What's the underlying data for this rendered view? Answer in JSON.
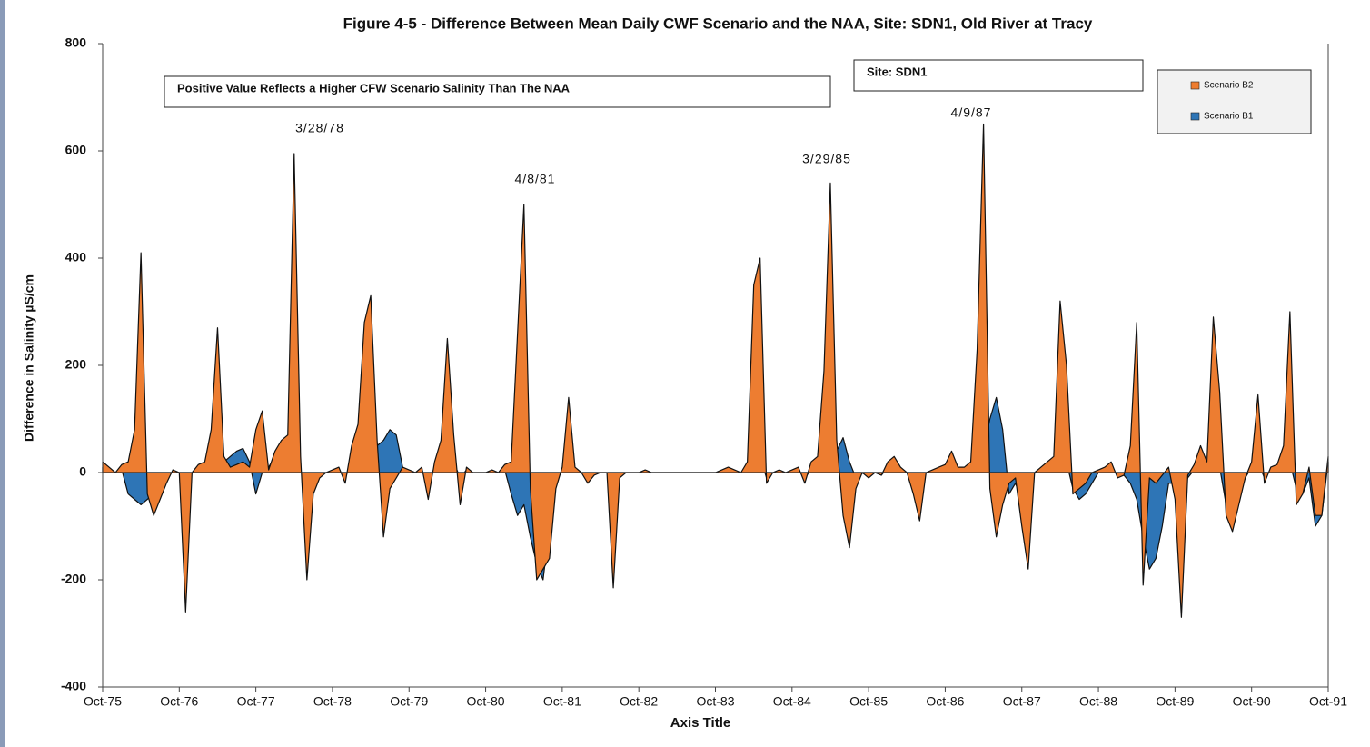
{
  "chart_data": {
    "type": "area",
    "title": "Figure 4-5 - Difference Between Mean Daily CWF Scenario and the NAA, Site: SDN1, Old River at Tracy",
    "x_label": "Axis Title",
    "y_label": "Difference in Salinity µS/cm",
    "annotations": [
      "Positive Value Reflects a Higher CFW Scenario Salinity Than The NAA",
      "Site: SDN1",
      "3/28/78",
      "4/8/81",
      "3/29/85",
      "4/9/87"
    ],
    "categories": [
      "Oct-75",
      null,
      null,
      null,
      null,
      null,
      null,
      null,
      null,
      null,
      null,
      null,
      "Oct-76",
      null,
      null,
      null,
      null,
      null,
      null,
      null,
      null,
      null,
      null,
      null,
      "Oct-77",
      null,
      null,
      null,
      null,
      null,
      null,
      null,
      null,
      null,
      null,
      null,
      "Oct-78",
      null,
      null,
      null,
      null,
      null,
      null,
      null,
      null,
      null,
      null,
      null,
      "Oct-79",
      null,
      null,
      null,
      null,
      null,
      null,
      null,
      null,
      null,
      null,
      null,
      "Oct-80",
      null,
      null,
      null,
      null,
      null,
      null,
      null,
      null,
      null,
      null,
      null,
      "Oct-81",
      null,
      null,
      null,
      null,
      null,
      null,
      null,
      null,
      null,
      null,
      null,
      "Oct-82",
      null,
      null,
      null,
      null,
      null,
      null,
      null,
      null,
      null,
      null,
      null,
      "Oct-83",
      null,
      null,
      null,
      null,
      null,
      null,
      null,
      null,
      null,
      null,
      null,
      "Oct-84",
      null,
      null,
      null,
      null,
      null,
      null,
      null,
      null,
      null,
      null,
      null,
      "Oct-85",
      null,
      null,
      null,
      null,
      null,
      null,
      null,
      null,
      null,
      null,
      null,
      "Oct-86",
      null,
      null,
      null,
      null,
      null,
      null,
      null,
      null,
      null,
      null,
      null,
      "Oct-87",
      null,
      null,
      null,
      null,
      null,
      null,
      null,
      null,
      null,
      null,
      null,
      "Oct-88",
      null,
      null,
      null,
      null,
      null,
      null,
      null,
      null,
      null,
      null,
      null,
      "Oct-89",
      null,
      null,
      null,
      null,
      null,
      null,
      null,
      null,
      null,
      null,
      null,
      "Oct-90",
      null,
      null,
      null,
      null,
      null,
      null,
      null,
      null,
      null,
      null,
      null,
      "Oct-91"
    ],
    "series": [
      {
        "name": "Scenario B1",
        "color": "#2e75b6",
        "values": [
          10,
          5,
          0,
          5,
          -40,
          -50,
          -60,
          -50,
          -40,
          -20,
          0,
          0,
          0,
          -40,
          0,
          5,
          10,
          20,
          10,
          20,
          30,
          40,
          45,
          20,
          -40,
          0,
          10,
          30,
          20,
          10,
          20,
          5,
          -30,
          -20,
          0,
          0,
          0,
          5,
          -10,
          20,
          30,
          60,
          40,
          50,
          60,
          80,
          70,
          10,
          0,
          0,
          5,
          -20,
          10,
          10,
          20,
          20,
          -10,
          5,
          0,
          0,
          0,
          0,
          0,
          5,
          -40,
          -80,
          -60,
          -120,
          -170,
          -200,
          -100,
          -20,
          5,
          40,
          5,
          0,
          -10,
          0,
          0,
          0,
          -30,
          -5,
          0,
          0,
          0,
          0,
          0,
          0,
          0,
          0,
          0,
          0,
          0,
          0,
          0,
          0,
          0,
          0,
          0,
          0,
          0,
          10,
          20,
          30,
          -10,
          0,
          0,
          0,
          0,
          5,
          -10,
          5,
          10,
          20,
          30,
          40,
          65,
          20,
          -10,
          0,
          -5,
          0,
          -5,
          10,
          15,
          5,
          0,
          -20,
          -40,
          0,
          0,
          5,
          10,
          20,
          5,
          5,
          10,
          30,
          40,
          100,
          140,
          80,
          -40,
          -20,
          -50,
          -60,
          0,
          5,
          10,
          10,
          20,
          20,
          -30,
          -50,
          -40,
          -20,
          0,
          5,
          10,
          -5,
          -5,
          -20,
          -50,
          -120,
          -180,
          -160,
          -100,
          -20,
          -20,
          -40,
          -10,
          5,
          10,
          10,
          20,
          10,
          -60,
          -100,
          -50,
          -10,
          10,
          20,
          -10,
          5,
          10,
          20,
          20,
          -30,
          -40,
          -10,
          -100,
          -80,
          20
        ]
      },
      {
        "name": "Scenario B2",
        "color": "#ed7d31",
        "values": [
          20,
          10,
          0,
          15,
          20,
          80,
          410,
          -40,
          -80,
          -50,
          -20,
          5,
          0,
          -260,
          0,
          15,
          20,
          80,
          270,
          30,
          10,
          15,
          20,
          10,
          80,
          115,
          5,
          40,
          60,
          70,
          595,
          30,
          -200,
          -40,
          -10,
          0,
          5,
          10,
          -20,
          50,
          90,
          280,
          330,
          60,
          -120,
          -30,
          -10,
          10,
          5,
          0,
          10,
          -50,
          20,
          60,
          250,
          70,
          -60,
          10,
          0,
          0,
          0,
          5,
          0,
          15,
          20,
          260,
          500,
          -30,
          -200,
          -180,
          -160,
          -30,
          10,
          140,
          10,
          0,
          -20,
          -5,
          0,
          0,
          -215,
          -10,
          0,
          0,
          0,
          5,
          0,
          0,
          0,
          0,
          0,
          0,
          0,
          0,
          0,
          0,
          0,
          5,
          10,
          5,
          0,
          20,
          350,
          400,
          -20,
          0,
          5,
          0,
          5,
          10,
          -20,
          20,
          30,
          190,
          540,
          60,
          -80,
          -140,
          -30,
          0,
          -10,
          0,
          -5,
          20,
          30,
          10,
          0,
          -40,
          -90,
          0,
          5,
          10,
          15,
          40,
          10,
          10,
          20,
          230,
          650,
          -30,
          -120,
          -60,
          -20,
          -10,
          -100,
          -180,
          0,
          10,
          20,
          30,
          320,
          200,
          -40,
          -30,
          -20,
          0,
          5,
          10,
          20,
          -10,
          -5,
          50,
          280,
          -210,
          -10,
          -20,
          -5,
          10,
          -50,
          -270,
          -5,
          15,
          50,
          20,
          290,
          150,
          -80,
          -110,
          -60,
          -10,
          20,
          145,
          -20,
          10,
          15,
          50,
          300,
          -60,
          -40,
          10,
          -80,
          -80,
          30
        ]
      }
    ],
    "ylim": [
      -400,
      800
    ],
    "yticks": [
      -400,
      -200,
      0,
      200,
      400,
      600,
      800
    ],
    "legend": "upper right"
  }
}
